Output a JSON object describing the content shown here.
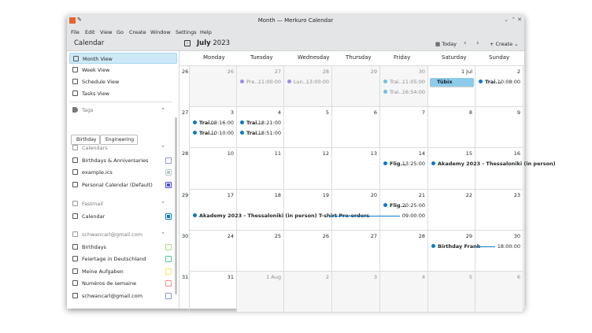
{
  "window": {
    "title": "Month — Merkuro Calendar"
  },
  "menu": [
    "File",
    "Edit",
    "View",
    "Go",
    "Create",
    "Window",
    "Settings",
    "Help"
  ],
  "toolbar": {
    "sidebar_title": "Calendar",
    "month": "July",
    "year": "2023",
    "today": "Today",
    "create": "Create"
  },
  "sidebar": {
    "views": [
      {
        "label": "Month View",
        "active": true
      },
      {
        "label": "Week View"
      },
      {
        "label": "Schedule View"
      },
      {
        "label": "Tasks View"
      }
    ],
    "tags_label": "Tags",
    "tags": [
      "Birthday",
      "Engineering"
    ],
    "groups": [
      {
        "label": "Calendars",
        "items": [
          {
            "label": "Birthdays & Anniversaries",
            "color": "#8f8ff0",
            "filled": false
          },
          {
            "label": "example.ics",
            "color": "#b8c8c8",
            "filled": true
          },
          {
            "label": "Personal Calendar (Default)",
            "color": "#4a4af0",
            "filled": true
          }
        ]
      },
      {
        "label": "Fastmail",
        "items": [
          {
            "label": "Calendar",
            "color": "#0a7acb",
            "filled": true
          }
        ]
      },
      {
        "label": "schwancarl@gmail.com",
        "items": [
          {
            "label": "Birthdays",
            "color": "#a8e08a",
            "filled": false
          },
          {
            "label": "Feiertage in Deutschland",
            "color": "#5cc98f",
            "filled": false
          },
          {
            "label": "Meine Aufgaben",
            "color": "#f0ec70",
            "filled": false
          },
          {
            "label": "Numéros de semaine",
            "color": "#f0907a",
            "filled": false
          },
          {
            "label": "schwancarl@gmail.com",
            "color": "#7f9ad8",
            "filled": false
          }
        ]
      }
    ]
  },
  "days": [
    "Monday",
    "Tuesday",
    "Wednesday",
    "Thursday",
    "Friday",
    "Saturday",
    "Sunday"
  ],
  "weeks": [
    {
      "num": "26",
      "dates": [
        "26",
        "27",
        "28",
        "29",
        "30",
        "1 Jul",
        "2"
      ],
      "out": [
        true,
        true,
        true,
        true,
        true,
        false,
        false
      ]
    },
    {
      "num": "27",
      "dates": [
        "3",
        "4",
        "5",
        "6",
        "7",
        "8",
        "9"
      ],
      "out": [
        false,
        false,
        false,
        false,
        false,
        false,
        false
      ]
    },
    {
      "num": "28",
      "dates": [
        "10",
        "11",
        "12",
        "13",
        "14",
        "15",
        "16"
      ],
      "out": [
        false,
        false,
        false,
        false,
        false,
        false,
        false
      ]
    },
    {
      "num": "29",
      "dates": [
        "17",
        "18",
        "19",
        "20",
        "21",
        "22",
        "23"
      ],
      "out": [
        false,
        false,
        false,
        false,
        false,
        false,
        false
      ]
    },
    {
      "num": "30",
      "dates": [
        "24",
        "25",
        "26",
        "27",
        "28",
        "29",
        "30"
      ],
      "out": [
        false,
        false,
        false,
        false,
        false,
        false,
        false
      ]
    },
    {
      "num": "31",
      "dates": [
        "31",
        "1 Aug",
        "2",
        "3",
        "4",
        "5",
        "6"
      ],
      "out": [
        false,
        true,
        true,
        true,
        true,
        true,
        true
      ]
    }
  ],
  "events": [
    {
      "week": 0,
      "day": 1,
      "span": 1,
      "slot": 0,
      "title": "Pre...",
      "time": "11:00:00",
      "color": "#9a8cf0",
      "faded": true
    },
    {
      "week": 0,
      "day": 2,
      "span": 1,
      "slot": 0,
      "title": "Lun...",
      "time": "13:00:00",
      "color": "#9a8cf0",
      "faded": true
    },
    {
      "week": 0,
      "day": 4,
      "span": 1,
      "slot": 0,
      "title": "Trai...",
      "time": "11:05:00",
      "color": "#6fc0e8",
      "faded": true
    },
    {
      "week": 0,
      "day": 4,
      "span": 1,
      "slot": 1,
      "title": "Trai...",
      "time": "16:54:00",
      "color": "#6fc0e8",
      "faded": true
    },
    {
      "week": 0,
      "day": 5,
      "span": 1,
      "slot": 0,
      "title": "Tübix",
      "allday": true,
      "color": "#8dcbe8"
    },
    {
      "week": 0,
      "day": 6,
      "span": 1,
      "slot": 0,
      "title": "Trai...",
      "time": "10:08:00",
      "color": "#0a7acb"
    },
    {
      "week": 1,
      "day": 0,
      "span": 1,
      "slot": 0,
      "title": "Trai...",
      "time": "08:16:00",
      "color": "#0a7acb"
    },
    {
      "week": 1,
      "day": 0,
      "span": 1,
      "slot": 1,
      "title": "Trai...",
      "time": "10:10:00",
      "color": "#0a7acb"
    },
    {
      "week": 1,
      "day": 1,
      "span": 1,
      "slot": 0,
      "title": "Trai...",
      "time": "18:21:00",
      "color": "#0a7acb"
    },
    {
      "week": 1,
      "day": 1,
      "span": 1,
      "slot": 1,
      "title": "Trai...",
      "time": "18:51:00",
      "color": "#0a7acb"
    },
    {
      "week": 2,
      "day": 4,
      "span": 1,
      "slot": 0,
      "title": "Flig...",
      "time": "13:25:00",
      "color": "#0a7acb"
    },
    {
      "week": 2,
      "day": 5,
      "span": 2,
      "slot": 0,
      "title": "Akademy 2023 - Thessaloniki (in person)",
      "color": "#0a7acb"
    },
    {
      "week": 3,
      "day": 4,
      "span": 1,
      "slot": 0,
      "title": "Flig...",
      "time": "20:25:00",
      "color": "#0a7acb"
    },
    {
      "week": 3,
      "day": 0,
      "span": 5,
      "slot": 1,
      "title": "Akademy 2023 - Thessaloniki (in person) T-shirt Pre-orders",
      "time": "09:00:00",
      "color": "#0a7acb",
      "line": true
    },
    {
      "week": 4,
      "day": 5,
      "span": 2,
      "slot": 0,
      "title": "Birthday Frank",
      "time": "18:00:00",
      "color": "#0a7acb",
      "line": true
    }
  ]
}
